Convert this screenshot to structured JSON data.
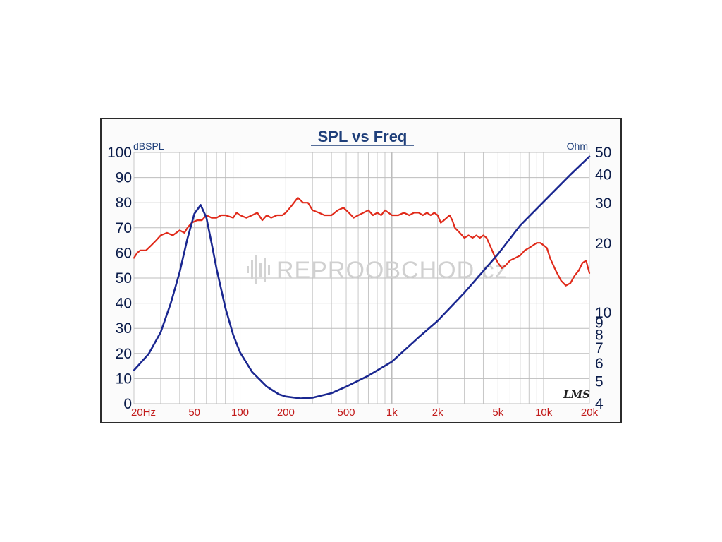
{
  "chart_data": {
    "type": "line",
    "title": "SPL vs Freq",
    "x_scale": "log",
    "xlim": [
      20,
      20000
    ],
    "xtick_labels": [
      {
        "value": 20,
        "label": "20Hz"
      },
      {
        "value": 50,
        "label": "50"
      },
      {
        "value": 100,
        "label": "100"
      },
      {
        "value": 200,
        "label": "200"
      },
      {
        "value": 500,
        "label": "500"
      },
      {
        "value": 1000,
        "label": "1k"
      },
      {
        "value": 2000,
        "label": "2k"
      },
      {
        "value": 5000,
        "label": "5k"
      },
      {
        "value": 10000,
        "label": "10k"
      },
      {
        "value": 20000,
        "label": "20k"
      }
    ],
    "y_left": {
      "label": "dBSPL",
      "ylim": [
        0,
        100
      ],
      "ticks": [
        0,
        10,
        20,
        30,
        40,
        50,
        60,
        70,
        80,
        90,
        100
      ]
    },
    "y_right": {
      "label": "Ohm",
      "scale": "log",
      "ylim": [
        4,
        50
      ],
      "ticks": [
        {
          "value": 4,
          "label": "4"
        },
        {
          "value": 5,
          "label": "5"
        },
        {
          "value": 6,
          "label": "6"
        },
        {
          "value": 7,
          "label": "7"
        },
        {
          "value": 8,
          "label": "8"
        },
        {
          "value": 9,
          "label": "9"
        },
        {
          "value": 10,
          "label": "10"
        },
        {
          "value": 20,
          "label": "20"
        },
        {
          "value": 30,
          "label": "30"
        },
        {
          "value": 40,
          "label": "40"
        },
        {
          "value": 50,
          "label": "50"
        }
      ]
    },
    "grid": true,
    "series": [
      {
        "axis": "left",
        "color": "#e02a1a",
        "points": [
          [
            20,
            58
          ],
          [
            21,
            60
          ],
          [
            22,
            61
          ],
          [
            24,
            61
          ],
          [
            26,
            63
          ],
          [
            28,
            65
          ],
          [
            30,
            67
          ],
          [
            33,
            68
          ],
          [
            36,
            67
          ],
          [
            40,
            69
          ],
          [
            43,
            68
          ],
          [
            45,
            70
          ],
          [
            48,
            72
          ],
          [
            52,
            73
          ],
          [
            56,
            73
          ],
          [
            60,
            75
          ],
          [
            65,
            74
          ],
          [
            70,
            74
          ],
          [
            75,
            75
          ],
          [
            80,
            75
          ],
          [
            90,
            74
          ],
          [
            95,
            76
          ],
          [
            100,
            75
          ],
          [
            110,
            74
          ],
          [
            120,
            75
          ],
          [
            130,
            76
          ],
          [
            140,
            73
          ],
          [
            150,
            75
          ],
          [
            160,
            74
          ],
          [
            175,
            75
          ],
          [
            190,
            75
          ],
          [
            200,
            76
          ],
          [
            220,
            79
          ],
          [
            240,
            82
          ],
          [
            260,
            80
          ],
          [
            280,
            80
          ],
          [
            300,
            77
          ],
          [
            330,
            76
          ],
          [
            360,
            75
          ],
          [
            400,
            75
          ],
          [
            440,
            77
          ],
          [
            480,
            78
          ],
          [
            520,
            76
          ],
          [
            560,
            74
          ],
          [
            600,
            75
          ],
          [
            650,
            76
          ],
          [
            700,
            77
          ],
          [
            750,
            75
          ],
          [
            800,
            76
          ],
          [
            850,
            75
          ],
          [
            900,
            77
          ],
          [
            950,
            76
          ],
          [
            1000,
            75
          ],
          [
            1100,
            75
          ],
          [
            1200,
            76
          ],
          [
            1300,
            75
          ],
          [
            1400,
            76
          ],
          [
            1500,
            76
          ],
          [
            1600,
            75
          ],
          [
            1700,
            76
          ],
          [
            1800,
            75
          ],
          [
            1900,
            76
          ],
          [
            2000,
            75
          ],
          [
            2100,
            72
          ],
          [
            2200,
            73
          ],
          [
            2300,
            74
          ],
          [
            2400,
            75
          ],
          [
            2500,
            73
          ],
          [
            2600,
            70
          ],
          [
            2800,
            68
          ],
          [
            3000,
            66
          ],
          [
            3200,
            67
          ],
          [
            3400,
            66
          ],
          [
            3600,
            67
          ],
          [
            3800,
            66
          ],
          [
            4000,
            67
          ],
          [
            4200,
            66
          ],
          [
            4500,
            62
          ],
          [
            4800,
            58
          ],
          [
            5000,
            56
          ],
          [
            5300,
            54
          ],
          [
            5600,
            55
          ],
          [
            6000,
            57
          ],
          [
            6500,
            58
          ],
          [
            7000,
            59
          ],
          [
            7500,
            61
          ],
          [
            8000,
            62
          ],
          [
            8500,
            63
          ],
          [
            9000,
            64
          ],
          [
            9500,
            64
          ],
          [
            10000,
            63
          ],
          [
            10500,
            62
          ],
          [
            11000,
            58
          ],
          [
            12000,
            53
          ],
          [
            13000,
            49
          ],
          [
            14000,
            47
          ],
          [
            15000,
            48
          ],
          [
            16000,
            51
          ],
          [
            17000,
            53
          ],
          [
            18000,
            56
          ],
          [
            19000,
            57
          ],
          [
            20000,
            52
          ]
        ]
      },
      {
        "axis": "right",
        "color": "#1a2790",
        "points": [
          [
            20,
            5.6
          ],
          [
            25,
            6.6
          ],
          [
            30,
            8.2
          ],
          [
            35,
            11
          ],
          [
            40,
            15
          ],
          [
            45,
            21
          ],
          [
            50,
            27
          ],
          [
            55,
            29.5
          ],
          [
            60,
            26
          ],
          [
            65,
            20
          ],
          [
            70,
            15.5
          ],
          [
            80,
            10.5
          ],
          [
            90,
            8
          ],
          [
            100,
            6.7
          ],
          [
            120,
            5.5
          ],
          [
            150,
            4.75
          ],
          [
            180,
            4.4
          ],
          [
            200,
            4.3
          ],
          [
            250,
            4.22
          ],
          [
            300,
            4.25
          ],
          [
            400,
            4.45
          ],
          [
            500,
            4.75
          ],
          [
            700,
            5.3
          ],
          [
            1000,
            6.1
          ],
          [
            1500,
            7.8
          ],
          [
            2000,
            9.2
          ],
          [
            3000,
            12.2
          ],
          [
            5000,
            18
          ],
          [
            7000,
            24
          ],
          [
            10000,
            30.5
          ],
          [
            15000,
            40
          ],
          [
            20000,
            48
          ]
        ]
      }
    ],
    "annotation": "LMS",
    "watermark": "REPROOBCHOD.cz"
  }
}
